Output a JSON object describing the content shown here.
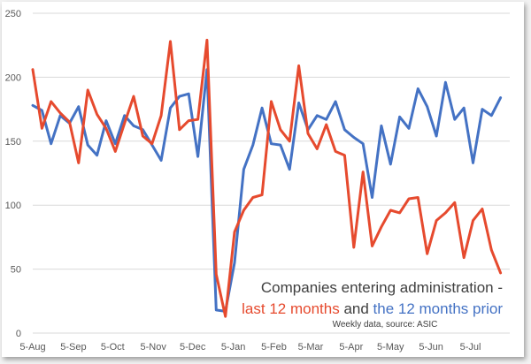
{
  "chart_data": {
    "type": "line",
    "ylim": [
      0,
      250
    ],
    "yticks": [
      0,
      50,
      100,
      150,
      200,
      250
    ],
    "xlim": [
      0,
      52
    ],
    "xticks": [
      {
        "label": "5-Aug",
        "x": 0
      },
      {
        "label": "5-Sep",
        "x": 4.43
      },
      {
        "label": "5-Oct",
        "x": 8.71
      },
      {
        "label": "5-Nov",
        "x": 13.14
      },
      {
        "label": "5-Dec",
        "x": 17.43
      },
      {
        "label": "5-Jan",
        "x": 21.86
      },
      {
        "label": "5-Feb",
        "x": 26.29
      },
      {
        "label": "5-Mar",
        "x": 30.29
      },
      {
        "label": "5-Apr",
        "x": 34.71
      },
      {
        "label": "5-May",
        "x": 39
      },
      {
        "label": "5-Jun",
        "x": 43.43
      },
      {
        "label": "5-Jul",
        "x": 47.71
      }
    ],
    "series": [
      {
        "name": "the 12 months prior",
        "color": "#4472c4",
        "values": [
          178,
          174,
          148,
          170,
          164,
          177,
          147,
          139,
          166,
          148,
          170,
          162,
          159,
          147,
          135,
          176,
          185,
          187,
          138,
          206,
          18,
          17,
          55,
          128,
          147,
          176,
          148,
          147,
          128,
          180,
          159,
          170,
          167,
          181,
          159,
          153,
          148,
          106,
          162,
          132,
          169,
          160,
          191,
          177,
          154,
          196,
          167,
          176,
          133,
          175,
          170,
          184
        ]
      },
      {
        "name": "last 12 months",
        "color": "#e64a2e",
        "values": [
          206,
          160,
          181,
          172,
          165,
          133,
          190,
          171,
          160,
          142,
          164,
          185,
          154,
          148,
          170,
          228,
          159,
          166,
          167,
          229,
          46,
          13,
          79,
          96,
          106,
          108,
          181,
          159,
          150,
          209,
          156,
          144,
          163,
          142,
          139,
          67,
          126,
          68,
          83,
          96,
          94,
          105,
          106,
          62,
          88,
          94,
          102,
          59,
          88,
          97,
          65,
          47
        ]
      }
    ],
    "annotation": {
      "line1": "Companies entering administration -",
      "red_text": "last 12 months",
      "and_text": " and ",
      "blue_text": "the 12 months prior",
      "source": "Weekly data, source: ASIC"
    }
  }
}
